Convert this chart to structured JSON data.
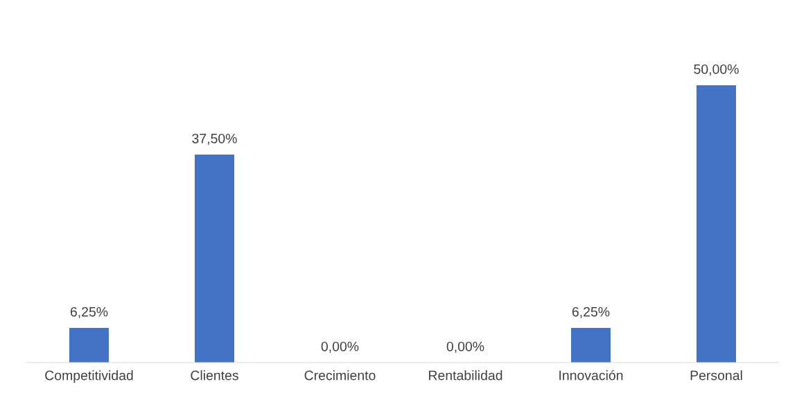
{
  "chart_data": {
    "type": "bar",
    "categories": [
      "Competitividad",
      "Clientes",
      "Crecimiento",
      "Rentabilidad",
      "Innovación",
      "Personal"
    ],
    "values": [
      6.25,
      37.5,
      0,
      0,
      6.25,
      50
    ],
    "value_labels": [
      "6,25%",
      "37,50%",
      "0,00%",
      "0,00%",
      "6,25%",
      "50,00%"
    ],
    "color": "#4472c4",
    "grid": false,
    "legend": false,
    "tick_labels": "x"
  }
}
